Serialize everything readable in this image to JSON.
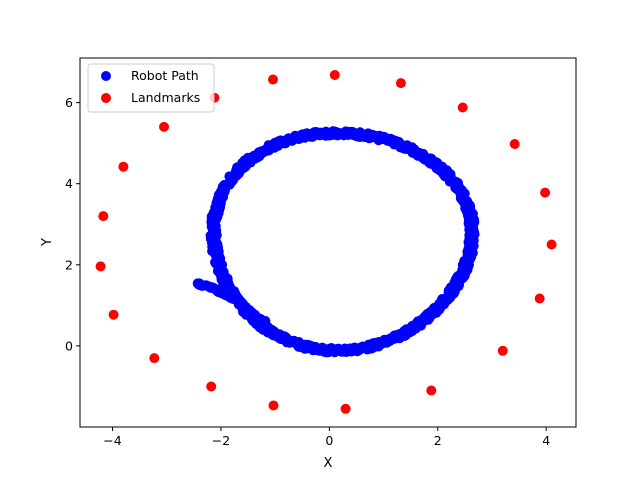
{
  "chart_data": {
    "type": "scatter",
    "xlabel": "X",
    "ylabel": "Y",
    "xlim": [
      -4.6,
      4.55
    ],
    "ylim": [
      -2.0,
      7.1
    ],
    "xticks": [
      -4,
      -2,
      0,
      2,
      4
    ],
    "yticks": [
      0,
      2,
      4,
      6
    ],
    "grid": false,
    "legend_position": "upper-left",
    "series": [
      {
        "name": "Robot Path",
        "color": "#0000ff",
        "ellipse": {
          "center_x": 0.22,
          "center_y": 2.62,
          "radius_x": 2.38,
          "radius_y": 2.68
        },
        "tail": [
          [
            -1.2,
            0.6
          ],
          [
            -1.45,
            0.82
          ],
          [
            -1.7,
            1.12
          ],
          [
            -1.95,
            1.3
          ],
          [
            -2.2,
            1.45
          ],
          [
            -2.45,
            1.55
          ]
        ]
      },
      {
        "name": "Landmarks",
        "color": "#ff0000",
        "points": [
          [
            0.1,
            6.68
          ],
          [
            1.32,
            6.48
          ],
          [
            2.46,
            5.88
          ],
          [
            3.42,
            4.98
          ],
          [
            3.98,
            3.78
          ],
          [
            4.1,
            2.5
          ],
          [
            3.88,
            1.17
          ],
          [
            3.2,
            -0.12
          ],
          [
            1.88,
            -1.1
          ],
          [
            0.3,
            -1.55
          ],
          [
            -1.03,
            -1.47
          ],
          [
            -2.18,
            -1.0
          ],
          [
            -3.23,
            -0.3
          ],
          [
            -3.98,
            0.77
          ],
          [
            -4.22,
            1.96
          ],
          [
            -4.17,
            3.2
          ],
          [
            -3.8,
            4.42
          ],
          [
            -3.05,
            5.4
          ],
          [
            -2.12,
            6.12
          ],
          [
            -1.04,
            6.57
          ]
        ]
      }
    ]
  }
}
